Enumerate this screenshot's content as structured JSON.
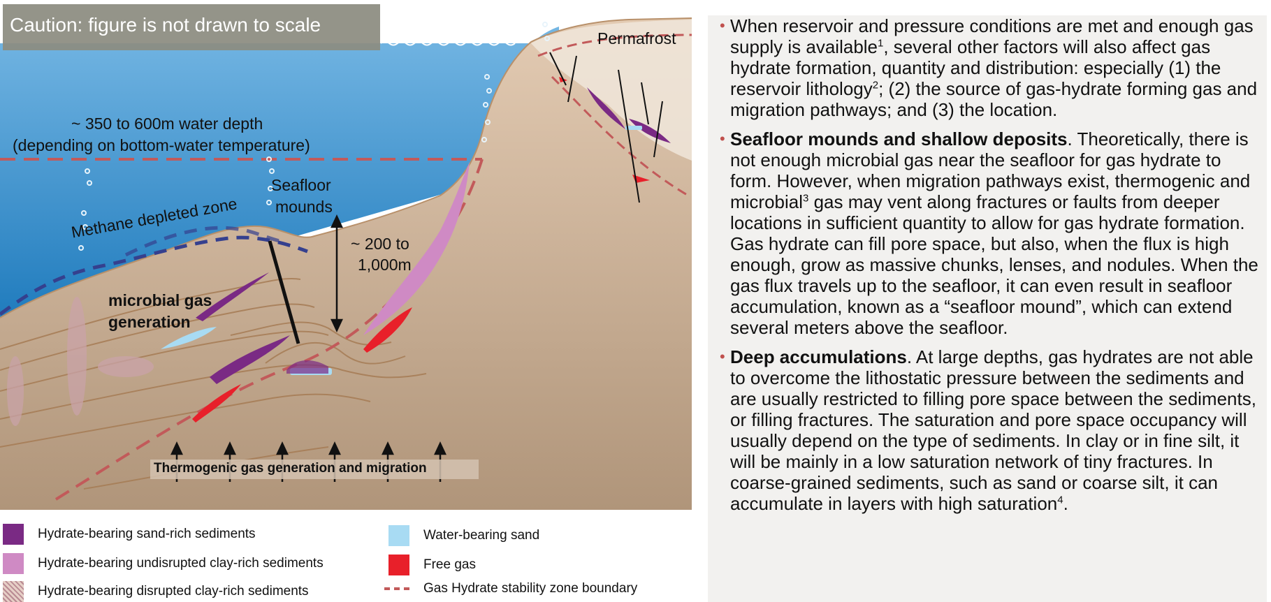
{
  "figure": {
    "caution": "Caution: figure is not drawn to scale",
    "labels": {
      "permafrost": "Permafrost",
      "water_depth_line1": "~ 350 to 600m water depth",
      "water_depth_line2": "(depending on bottom-water temperature)",
      "seafloor_line1": "Seafloor",
      "seafloor_line2": "mounds",
      "methane_depleted": "Methane depleted zone",
      "depth_range_line1": "~ 200 to",
      "depth_range_line2": "1,000m",
      "microbial_line1": "microbial gas",
      "microbial_line2": "generation",
      "thermogenic": "Thermogenic gas generation and migration"
    },
    "colors": {
      "ocean": "#3e92cc",
      "sediment": "#d8b89a",
      "hydrate_sand": "#7a2a84",
      "hydrate_clay": "#cf8ac4",
      "water_sand": "#a8dbf3",
      "free_gas": "#e8202a",
      "stability_boundary": "#c25a5a",
      "methane_zone": "#35408e"
    }
  },
  "legend": [
    {
      "label": "Hydrate-bearing sand-rich sediments",
      "icon": "swatch-hydrate-sand",
      "color": "#7a2a84"
    },
    {
      "label": "Hydrate-bearing undisrupted clay-rich sediments",
      "icon": "swatch-hydrate-clay",
      "color": "#cf8ac4"
    },
    {
      "label": "Hydrate-bearing disrupted clay-rich sediments",
      "icon": "swatch-disrupted-clay",
      "color": "#c9a3a8"
    },
    {
      "label": "Water-bearing sand",
      "icon": "swatch-water-sand",
      "color": "#a8dbf3"
    },
    {
      "label": "Free gas",
      "icon": "swatch-free-gas",
      "color": "#e8202a"
    },
    {
      "label": "Gas Hydrate stability zone boundary",
      "icon": "dashed-line",
      "color": "#c25a5a"
    }
  ],
  "text": {
    "b1_p1": "When reservoir and pressure conditions are met and enough gas supply is available",
    "b1_sup1": "1",
    "b1_p2": ", several other factors will also affect gas hydrate formation, quantity and distribution: especially (1) the reservoir lithology",
    "b1_sup2": "2",
    "b1_p3": "; (2) the source of gas-hydrate forming gas and migration pathways; and (3) the location.",
    "b2_title": "Seafloor mounds and shallow deposits",
    "b2_p1": ". Theoretically, there is not enough microbial gas near the seafloor for gas hydrate to form. However, when migration pathways exist, thermogenic and microbial",
    "b2_sup": "3",
    "b2_p2": " gas may vent along fractures or faults from deeper locations in sufficient quantity to allow for gas hydrate formation. Gas hydrate can fill pore space, but also, when the flux is high enough, grow as massive chunks, lenses, and nodules. When the gas flux travels up to the seafloor, it can even result in seafloor accumulation, known as a “seafloor mound”, which can extend several meters above the seafloor.",
    "b3_title": "Deep accumulations",
    "b3_p1": ". At large depths, gas hydrates are not able to overcome the lithostatic pressure between the sediments and are usually restricted to filling pore space between the sediments, or filling fractures. The saturation and pore space occupancy will usually depend on the type of sediments. In clay or in fine silt, it will be mainly in a low saturation network of tiny fractures. In coarse-grained sediments, such as sand or coarse silt, it can accumulate in layers with high saturation",
    "b3_sup": "4",
    "b3_p2": "."
  }
}
